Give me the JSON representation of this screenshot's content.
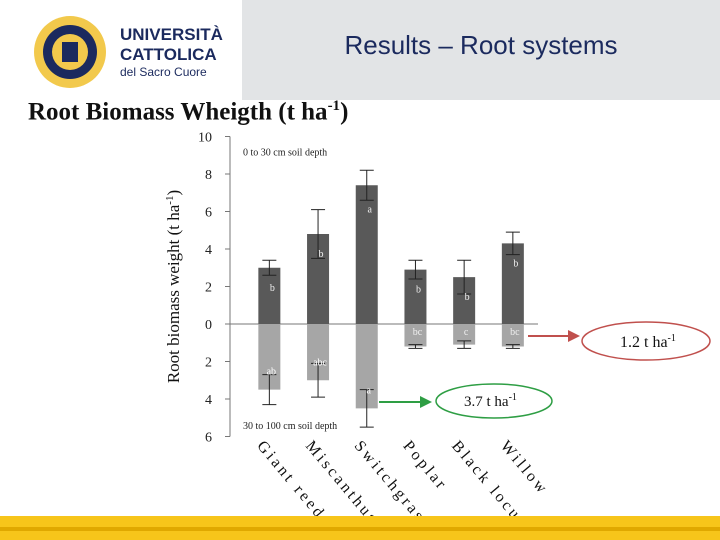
{
  "header": {
    "slide_title": "Results – Root systems",
    "logo": {
      "line1": "UNIVERSITÀ",
      "line2": "CATTOLICA",
      "line3": "del Sacro Cuore"
    }
  },
  "heading": {
    "text": "Root Biomass Wheigth (t ha",
    "sup": "-1",
    "close": ")"
  },
  "colors": {
    "title": "#1b2a5e",
    "bar_upper": "#595959",
    "bar_lower": "#a6a6a6",
    "arrow": "#c0504d",
    "green_arrow": "#2e9e44",
    "footer": "#f7c51a"
  },
  "chart_data": {
    "type": "bar",
    "ylabel": "Root biomass weight (t ha",
    "ylabel_sup": "-1",
    "ylabel_close": ")",
    "ytick_labels": [
      "10",
      "8",
      "6",
      "4",
      "2",
      "0",
      "2",
      "4",
      "6"
    ],
    "ytick_values": [
      10,
      8,
      6,
      4,
      2,
      0,
      -2,
      -4,
      -6
    ],
    "ylim": [
      -6,
      10
    ],
    "categories": [
      "Giant reed",
      "Miscanthus",
      "Switchgrass",
      "Poplar",
      "Black locust",
      "Willow"
    ],
    "upper_label": "0 to 30 cm soil depth",
    "lower_label": "30 to 100 cm soil depth",
    "series": [
      {
        "values": [
          3.0,
          4.8,
          7.4,
          2.9,
          2.5,
          4.3
        ],
        "errors": [
          0.4,
          1.3,
          0.8,
          0.5,
          0.9,
          0.6
        ],
        "letters": [
          "b",
          "b",
          "a",
          "b",
          "b",
          "b"
        ]
      },
      {
        "values": [
          -3.5,
          -3.0,
          -4.5,
          -1.2,
          -1.1,
          -1.2
        ],
        "errors": [
          0.8,
          0.9,
          1.0,
          0.1,
          0.2,
          0.1
        ],
        "letters": [
          "ab",
          "abc",
          "a",
          "bc",
          "c",
          "bc"
        ]
      }
    ],
    "annotations": [
      {
        "text": "1.2 t ha",
        "sup": "-1"
      },
      {
        "text": "3.7 t ha",
        "sup": "-1"
      }
    ]
  }
}
